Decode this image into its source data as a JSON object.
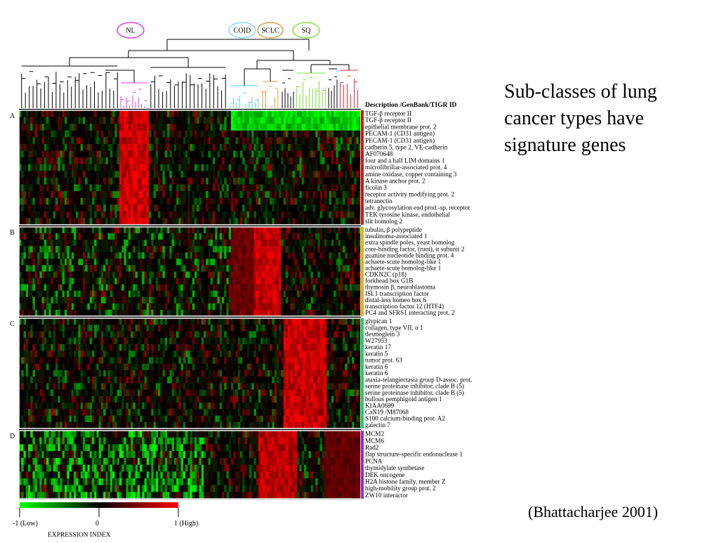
{
  "slide": {
    "title": "Sub-classes of lung cancer types have signature genes",
    "citation": "(Bhattacharjee 2001)"
  },
  "chart_data": {
    "type": "heatmap",
    "column_header": "Description /GenBank/TIGR ID",
    "clusters": [
      {
        "name": "NL",
        "color": "#e040e0"
      },
      {
        "name": "COID",
        "color": "#7ee0f0"
      },
      {
        "name": "SCLC",
        "color": "#d8a040"
      },
      {
        "name": "SQ",
        "color": "#80e040"
      }
    ],
    "color_scale": {
      "label": "EXPRESSION INDEX",
      "min_label": "-1  (Low)",
      "mid_label": "0",
      "max_label": "1  (High)",
      "range": [
        -1,
        1
      ],
      "low_color": "#00ff00",
      "mid_color": "#000000",
      "high_color": "#ff0000"
    },
    "blocks": [
      {
        "label": "A",
        "color": "#d01818",
        "genes": [
          "TGF-β receptor II",
          "TGF-β receptor II",
          "epithelial membrane prot. 2",
          "PECAM-1 (CD31 antigen)",
          "PECAM-1 (CD31 antigen)",
          "cadherin 5, type 2, VE-cadherin",
          "AF070648",
          "four and a half LIM domains 1",
          "microfibrillar-associated prot. 4",
          "amine oxidase, copper containing 3",
          "A kinase  anchor prot. 2",
          "ficolin  3",
          "receptor  activity modifying prot. 2",
          "tetranectin",
          "adv. glycosylation end prod.-sp. receptor",
          "TEK tyrosine kinase, endothelial",
          "slit  homolog 2"
        ]
      },
      {
        "label": "B",
        "color": "#e0b020",
        "genes": [
          "tubulin, β polypeptide",
          "insulinoma-associated 1",
          "extra spindle poles, yeast homolog",
          "core-binding factor, (runt), α subunit 2",
          "guanine nucleotide binding prot. 4",
          "achaete-scute homolog-like 1",
          "achaete-scute homolog-like 1",
          "CDKN2C (p18)",
          "forkhead box G1B",
          "thymosin β, neuroblastoma",
          "ISL1 transcription factor",
          "distal-less homeo box 6",
          "transcription factor 12 (HTF4)",
          "PC4 and SFRS1 interacting prot. 2"
        ]
      },
      {
        "label": "C",
        "color": "#20d060",
        "genes": [
          "glypican 1",
          "collagen, type VII, α 1",
          "desmoglein 3",
          "W27953",
          "keratin 17",
          "keratin 5",
          "tumor prot. 63",
          "keratin 6",
          "keratin 6",
          "ataxia-telangiectasia group D-assoc. prot.",
          "serine  proteinase inhibitor, clade B (5)",
          "serine  proteinase inhibitor, clade B (5)",
          "bullous pemphigoid antigen 1",
          "KIAA0699",
          "CaN19 /M87068",
          "S100 calcium-binding prot. A2",
          "galectin 7"
        ]
      },
      {
        "label": "D",
        "color": "#9030d0",
        "genes": [
          "MCM2",
          "MCM6",
          "Rad2",
          "flap structure-specific endonuclease 1",
          "PCNA",
          "thymidylate synthetase",
          "DEK oncogene",
          "H2A histone family, member Z",
          "high-mobility group  prot. 2",
          "ZW10 interactor"
        ]
      }
    ]
  }
}
